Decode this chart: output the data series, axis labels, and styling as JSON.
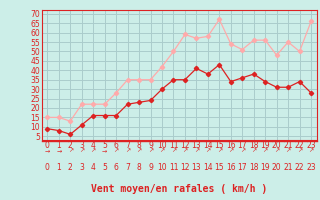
{
  "x": [
    0,
    1,
    2,
    3,
    4,
    5,
    6,
    7,
    8,
    9,
    10,
    11,
    12,
    13,
    14,
    15,
    16,
    17,
    18,
    19,
    20,
    21,
    22,
    23
  ],
  "wind_avg": [
    9,
    8,
    6,
    11,
    16,
    16,
    16,
    22,
    23,
    24,
    30,
    35,
    35,
    41,
    38,
    43,
    34,
    36,
    38,
    34,
    31,
    31,
    34,
    28
  ],
  "wind_gust": [
    15,
    15,
    13,
    22,
    22,
    22,
    28,
    35,
    35,
    35,
    42,
    50,
    59,
    57,
    58,
    67,
    54,
    51,
    56,
    56,
    48,
    55,
    50,
    66
  ],
  "line_avg_color": "#dd2222",
  "line_gust_color": "#ffaaaa",
  "bg_color": "#cceee8",
  "grid_color": "#aacccc",
  "xlabel": "Vent moyen/en rafales ( km/h )",
  "xlabel_color": "#dd2222",
  "ylabel_ticks": [
    5,
    10,
    15,
    20,
    25,
    30,
    35,
    40,
    45,
    50,
    55,
    60,
    65,
    70
  ],
  "ylim": [
    3,
    72
  ],
  "xlim": [
    -0.5,
    23.5
  ],
  "tick_fontsize": 5.5,
  "xlabel_fontsize": 7.0
}
